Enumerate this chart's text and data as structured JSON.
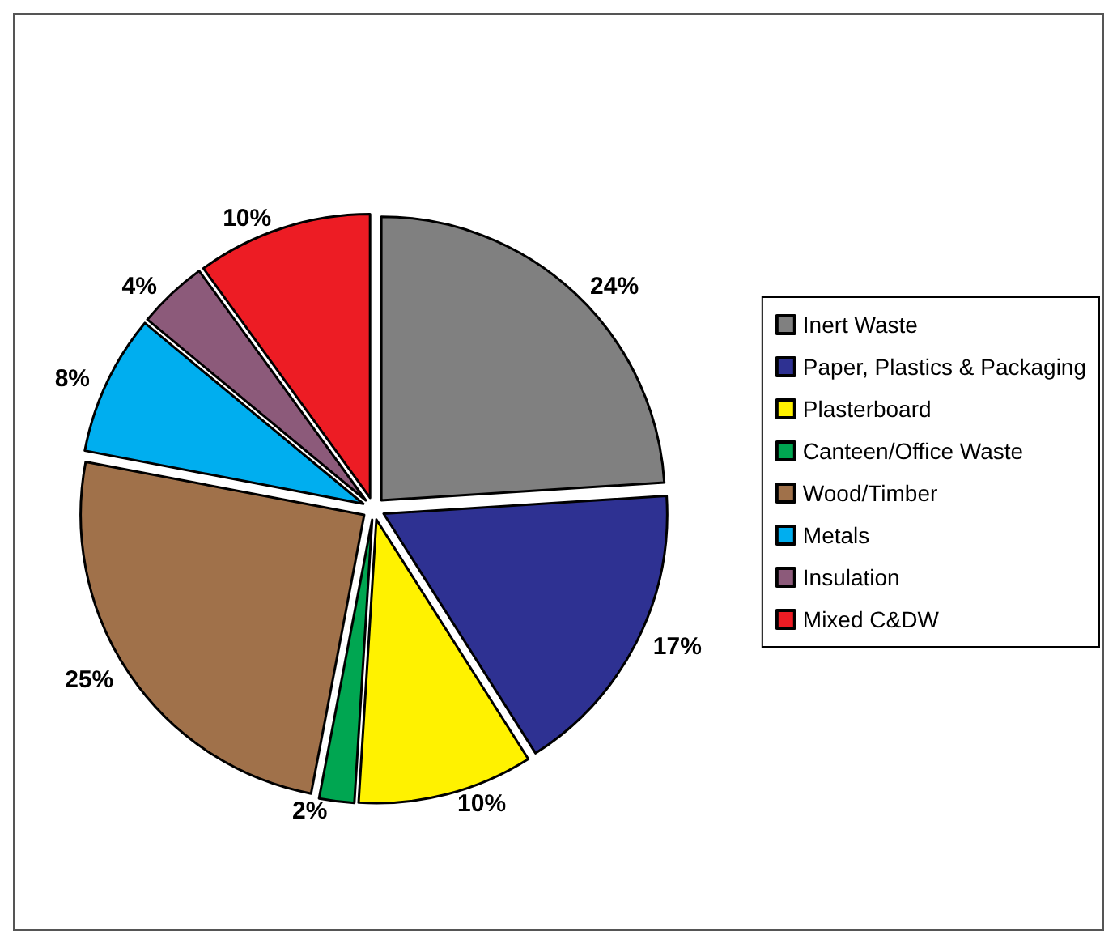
{
  "chart_data": {
    "type": "pie",
    "categories": [
      "Inert Waste",
      "Paper, Plastics & Packaging",
      "Plasterboard",
      "Canteen/Office Waste",
      "Wood/Timber",
      "Metals",
      "Insulation",
      "Mixed C&DW"
    ],
    "values": [
      24,
      17,
      10,
      2,
      25,
      8,
      4,
      10
    ],
    "colors": [
      "#808080",
      "#2e3192",
      "#fff200",
      "#00a651",
      "#a0714a",
      "#00aeef",
      "#8c5a7a",
      "#ed1c24"
    ],
    "value_labels": [
      "24%",
      "17%",
      "10%",
      "2%",
      "25%",
      "8%",
      "4%",
      "10%"
    ],
    "legend": "right"
  }
}
